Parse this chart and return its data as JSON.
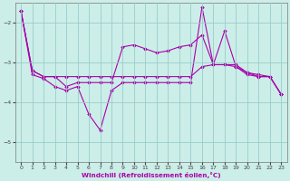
{
  "xlabel": "Windchill (Refroidissement éolien,°C)",
  "bg_color": "#cceee8",
  "line_color": "#aa00aa",
  "grid_color": "#99cccc",
  "ylim": [
    -5.5,
    -1.5
  ],
  "xlim": [
    -0.5,
    23.5
  ],
  "yticks": [
    -5,
    -4,
    -3,
    -2
  ],
  "xticks": [
    0,
    1,
    2,
    3,
    4,
    5,
    6,
    7,
    8,
    9,
    10,
    11,
    12,
    13,
    14,
    15,
    16,
    17,
    18,
    19,
    20,
    21,
    22,
    23
  ],
  "series1_x": [
    0,
    1,
    2,
    3,
    4,
    5,
    6,
    7,
    8,
    9,
    10,
    11,
    12,
    13,
    14,
    15,
    16,
    17,
    18,
    19,
    20,
    21,
    22,
    23
  ],
  "series1_y": [
    -1.7,
    -3.2,
    -3.35,
    -3.35,
    -3.35,
    -3.35,
    -3.35,
    -3.35,
    -3.35,
    -3.35,
    -3.35,
    -3.35,
    -3.35,
    -3.35,
    -3.35,
    -3.35,
    -3.1,
    -3.05,
    -3.05,
    -3.05,
    -3.25,
    -3.35,
    -3.35,
    -3.8
  ],
  "series2_x": [
    0,
    1,
    2,
    3,
    4,
    5,
    6,
    7,
    8,
    9,
    10,
    11,
    12,
    13,
    14,
    15,
    16,
    17,
    18,
    19,
    20,
    21,
    22,
    23
  ],
  "series2_y": [
    -1.7,
    -3.2,
    -3.35,
    -3.35,
    -3.6,
    -3.5,
    -3.5,
    -3.5,
    -3.5,
    -2.6,
    -2.55,
    -2.65,
    -2.75,
    -2.7,
    -2.6,
    -2.55,
    -2.3,
    -3.05,
    -2.2,
    -3.1,
    -3.25,
    -3.3,
    -3.35,
    -3.8
  ],
  "series3_x": [
    0,
    1,
    2,
    3,
    4,
    5,
    6,
    7,
    8,
    9,
    10,
    11,
    12,
    13,
    14,
    15,
    16,
    17,
    18,
    19,
    20,
    21,
    22,
    23
  ],
  "series3_y": [
    -1.7,
    -3.3,
    -3.4,
    -3.6,
    -3.7,
    -3.6,
    -4.3,
    -4.7,
    -3.7,
    -3.5,
    -3.5,
    -3.5,
    -3.5,
    -3.5,
    -3.5,
    -3.5,
    -1.6,
    -3.05,
    -3.05,
    -3.1,
    -3.3,
    -3.35,
    -3.35,
    -3.8
  ]
}
